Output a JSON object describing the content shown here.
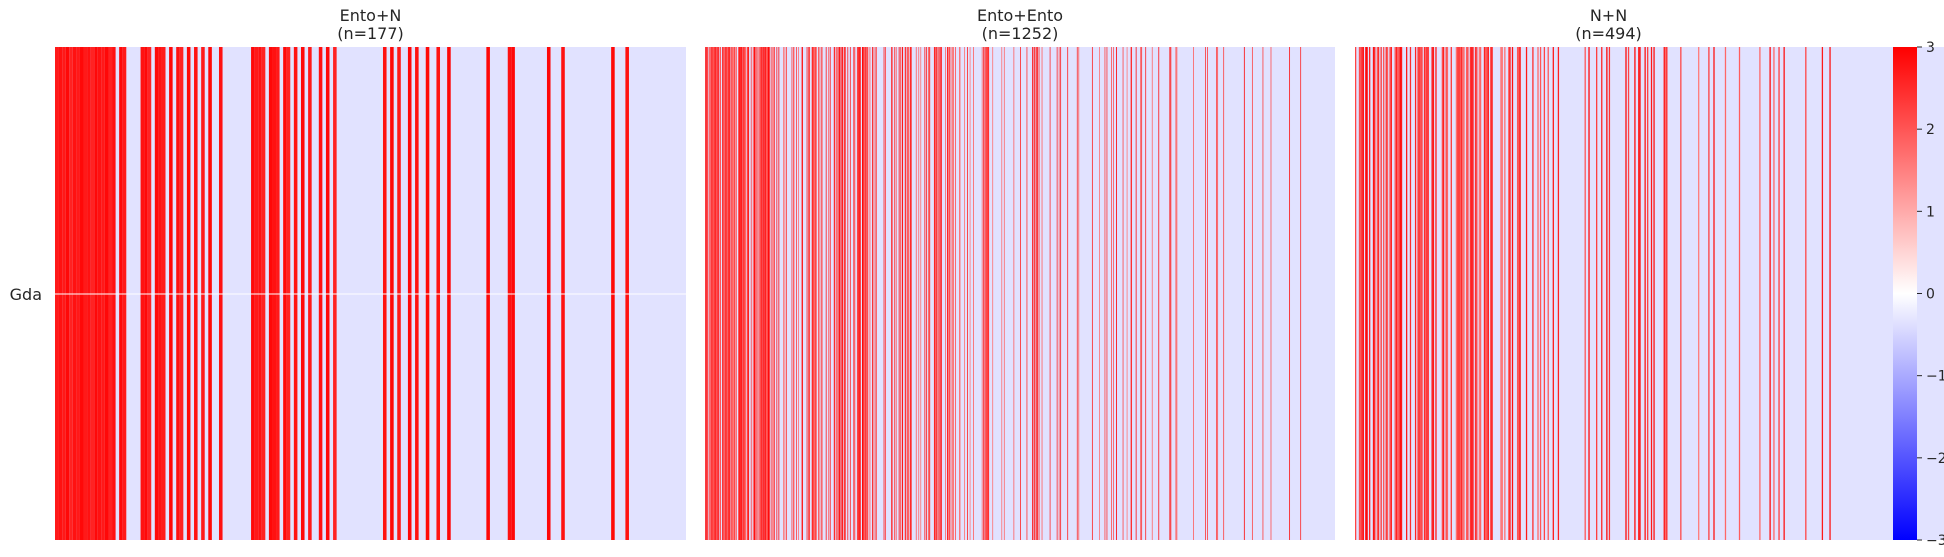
{
  "chart_data": {
    "type": "heatmap",
    "row_labels": [
      "Gda"
    ],
    "value_range": [
      -3,
      3
    ],
    "colormap": {
      "low": "#0000ff",
      "mid": "#ffffff",
      "high": "#ff0000"
    },
    "background_color": "#e1e2ff",
    "colorbar": {
      "ticks": [
        3,
        2,
        1,
        0,
        -1,
        -2,
        -3
      ],
      "tick_labels": [
        "3",
        "2",
        "1",
        "0",
        "−1",
        "−2",
        "−3"
      ],
      "placement": "right"
    },
    "panels": [
      {
        "title": "Ento+N",
        "subtitle": "(n=177)",
        "n": 177,
        "column_values": [
          2.7,
          2.8,
          2.7,
          2.9,
          2.6,
          2.8,
          2.7,
          2.9,
          2.7,
          2.8,
          2.6,
          2.9,
          2.8,
          2.7,
          2.9,
          2.6,
          2.8,
          0,
          2.9,
          2.7,
          0,
          0,
          0,
          0,
          2.8,
          2.9,
          2.6,
          0,
          2.9,
          2.8,
          2.7,
          0,
          2.9,
          0,
          2.8,
          2.6,
          0,
          2.9,
          0,
          2.8,
          0,
          2.7,
          0,
          2.9,
          0,
          0,
          2.8,
          0,
          0,
          0,
          0,
          0,
          0,
          0,
          0,
          2.9,
          2.7,
          2.8,
          2.6,
          0,
          2.9,
          2.8,
          2.7,
          0,
          2.9,
          2.6,
          0,
          2.8,
          0,
          2.9,
          0,
          2.7,
          0,
          0,
          2.8,
          0,
          2.9,
          0,
          2.6,
          0,
          0,
          0,
          0,
          0,
          0,
          0,
          0,
          0,
          0,
          0,
          0,
          0,
          2.8,
          0,
          2.9,
          0,
          2.7,
          0,
          0,
          2.9,
          0,
          2.8,
          0,
          0,
          2.9,
          0,
          0,
          2.8,
          0,
          0,
          2.9,
          0,
          0,
          0,
          0,
          0,
          0,
          0,
          0,
          0,
          0,
          2.9,
          0,
          0,
          0,
          0,
          0,
          2.8,
          2.9,
          0,
          0,
          0,
          0,
          0,
          0,
          0,
          0,
          0,
          2.9,
          0,
          0,
          0,
          2.8,
          0,
          0,
          0,
          0,
          0,
          0,
          0,
          0,
          0,
          0,
          0,
          0,
          0,
          2.9,
          0,
          0,
          0,
          2.8,
          0,
          0,
          0,
          0,
          0,
          0,
          0,
          0,
          0,
          0,
          0,
          0,
          0,
          0,
          0,
          0
        ]
      },
      {
        "title": "Ento+Ento",
        "subtitle": "(n=1252)",
        "n": 1252,
        "column_values": []
      },
      {
        "title": "N+N",
        "subtitle": "(n=494)",
        "n": 494,
        "column_values": []
      }
    ]
  }
}
